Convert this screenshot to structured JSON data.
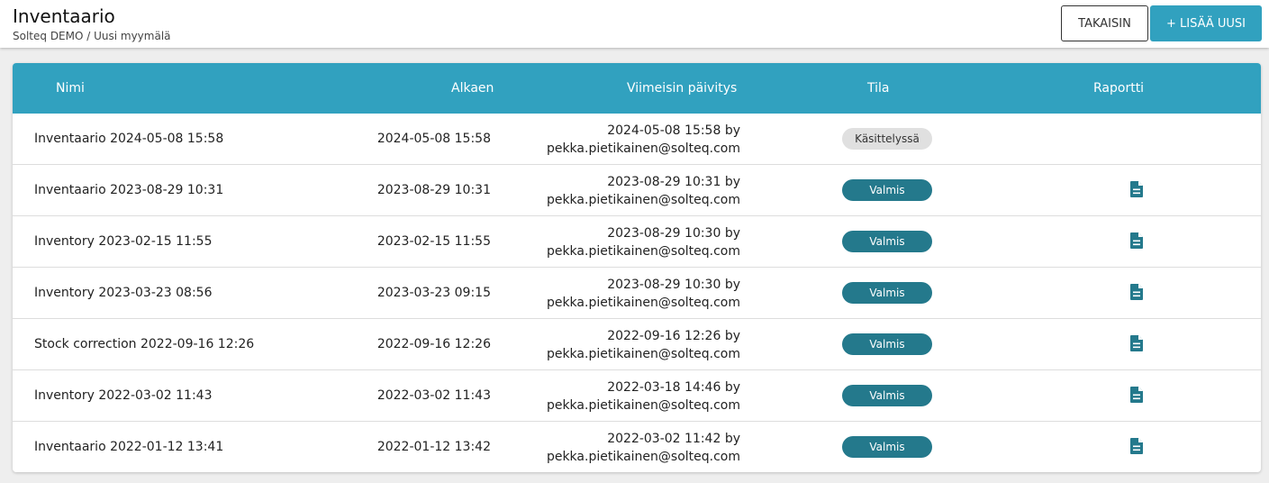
{
  "header": {
    "title": "Inventaario",
    "breadcrumb": "Solteq DEMO / Uusi myymälä",
    "back_label": "TAKAISIN",
    "add_label": "+ LISÄÄ UUSI"
  },
  "table": {
    "columns": [
      "Nimi",
      "Alkaen",
      "Viimeisin päivitys",
      "Tila",
      "Raportti"
    ],
    "rows": [
      {
        "name": "Inventaario 2024-05-08 15:58",
        "start": "2024-05-08 15:58",
        "updated": "2024-05-08 15:58 by",
        "updated_by": "pekka.pietikainen@solteq.com",
        "status": "Käsittelyssä",
        "report": false
      },
      {
        "name": "Inventaario 2023-08-29 10:31",
        "start": "2023-08-29 10:31",
        "updated": "2023-08-29 10:31 by",
        "updated_by": "pekka.pietikainen@solteq.com",
        "status": "Valmis",
        "report": true
      },
      {
        "name": "Inventory 2023-02-15 11:55",
        "start": "2023-02-15 11:55",
        "updated": "2023-08-29 10:30 by",
        "updated_by": "pekka.pietikainen@solteq.com",
        "status": "Valmis",
        "report": true
      },
      {
        "name": "Inventory 2023-03-23 08:56",
        "start": "2023-03-23 09:15",
        "updated": "2023-08-29 10:30 by",
        "updated_by": "pekka.pietikainen@solteq.com",
        "status": "Valmis",
        "report": true
      },
      {
        "name": "Stock correction 2022-09-16 12:26",
        "start": "2022-09-16 12:26",
        "updated": "2022-09-16 12:26 by",
        "updated_by": "pekka.pietikainen@solteq.com",
        "status": "Valmis",
        "report": true
      },
      {
        "name": "Inventory 2022-03-02 11:43",
        "start": "2022-03-02 11:43",
        "updated": "2022-03-18 14:46 by",
        "updated_by": "pekka.pietikainen@solteq.com",
        "status": "Valmis",
        "report": true
      },
      {
        "name": "Inventaario 2022-01-12 13:41",
        "start": "2022-01-12 13:42",
        "updated": "2022-03-02 11:42 by",
        "updated_by": "pekka.pietikainen@solteq.com",
        "status": "Valmis",
        "report": true
      }
    ]
  },
  "colors": {
    "accent": "#31a1bf",
    "done_badge": "#24798c",
    "processing_badge": "#e0e0e0"
  },
  "icons": {
    "report": "document-icon"
  }
}
